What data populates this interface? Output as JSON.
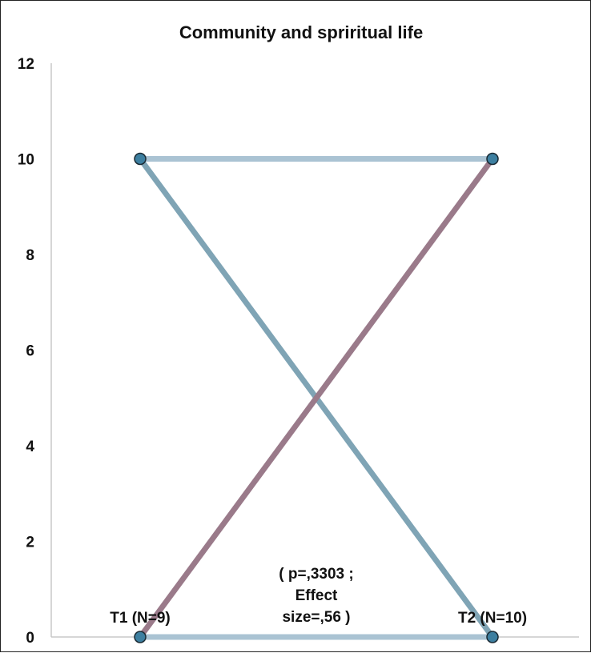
{
  "chart_data": {
    "type": "line",
    "title": "Community and spriritual life",
    "xlabel": "",
    "ylabel": "",
    "ylim": [
      0,
      12
    ],
    "yticks": [
      0,
      2,
      4,
      6,
      8,
      10,
      12
    ],
    "grid": false,
    "categories": [
      "T1 (N=9)",
      "T2 (N=10)"
    ],
    "series": [
      {
        "values": [
          10,
          10
        ],
        "color": "#aac3d3"
      },
      {
        "values": [
          0,
          0
        ],
        "color": "#aac3d3"
      },
      {
        "values": [
          10,
          0
        ],
        "color": "#7fa4b5"
      },
      {
        "values": [
          0,
          10
        ],
        "color": "#9a7a8a"
      }
    ],
    "marker_color": "#3d7fa0",
    "annotation": [
      "( p=,3303 ;",
      "Effect",
      "size=,56 )"
    ]
  }
}
